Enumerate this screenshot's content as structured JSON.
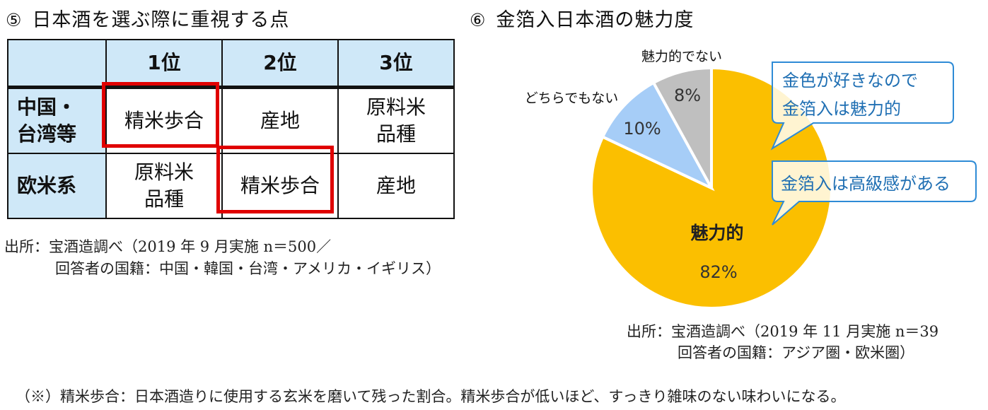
{
  "left": {
    "number": "⑤",
    "title": "日本酒を選ぶ際に重視する点",
    "table": {
      "columns": [
        "",
        "1位",
        "2位",
        "3位"
      ],
      "rows": [
        {
          "label": [
            "中国・",
            "台湾等"
          ],
          "cells": [
            [
              "精米歩合"
            ],
            [
              "産地"
            ],
            [
              "原料米",
              "品種"
            ]
          ]
        },
        {
          "label": [
            "欧米系"
          ],
          "cells": [
            [
              "原料米",
              "品種"
            ],
            [
              "精米歩合"
            ],
            [
              "産地"
            ]
          ]
        }
      ]
    },
    "source_line1": "出所：宝酒造調べ（2019 年 9 月実施  n＝500／",
    "source_line2": "回答者の国籍：中国・韓国・台湾・アメリカ・イギリス）"
  },
  "right": {
    "number": "⑥",
    "title": "金箔入日本酒の魅力度",
    "callout1_line1": "金色が好きなので",
    "callout1_line2": "金箔入は魅力的",
    "callout2": "金箔入は高級感がある",
    "source_line1": "出所：宝酒造調べ（2019 年 11 月実施  n＝39",
    "source_line2": "回答者の国籍：アジア圏・欧米圏）"
  },
  "chart_data": {
    "type": "pie",
    "slices": [
      {
        "label": "魅力的",
        "value": 82,
        "value_label": "82%",
        "color": "#fbbf00"
      },
      {
        "label": "どちらでもない",
        "value": 10,
        "value_label": "10%",
        "color": "#a6cdf7"
      },
      {
        "label": "魅力的でない",
        "value": 8,
        "value_label": "8%",
        "color": "#bfbfbf"
      }
    ]
  },
  "footnote": "（※）精米歩合：日本酒造りに使用する玄米を磨いて残った割合。精米歩合が低いほど、すっきり雑味のない味わいになる。"
}
